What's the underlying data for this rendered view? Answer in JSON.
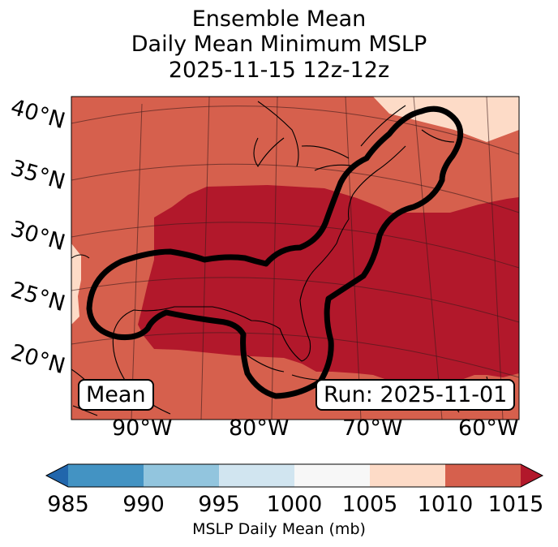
{
  "title": {
    "line1": "Ensemble Mean",
    "line2": "Daily Mean Minimum MSLP",
    "line3": "2025-11-15 12z-12z"
  },
  "map": {
    "lat_labels": [
      "40°N",
      "35°N",
      "30°N",
      "25°N",
      "20°N"
    ],
    "lon_labels": [
      "90°W",
      "80°W",
      "70°W",
      "60°W"
    ],
    "mean_box": "Mean",
    "run_box": "Run: 2025-11-01",
    "fill_colors": {
      "1005_1010": "#fddbc7",
      "1010_1015": "#d6604d",
      "above_1015": "#b2182b"
    },
    "contour_color": "#000000"
  },
  "colorbar": {
    "title": "MSLP Daily Mean (mb)",
    "ticks": [
      "985",
      "990",
      "995",
      "1000",
      "1005",
      "1010",
      "1015"
    ],
    "colors": [
      "#4393c3",
      "#92c5de",
      "#d1e5f0",
      "#f7f7f7",
      "#fddbc7",
      "#d6604d"
    ],
    "under_color": "#2166ac",
    "over_color": "#b2182b"
  }
}
